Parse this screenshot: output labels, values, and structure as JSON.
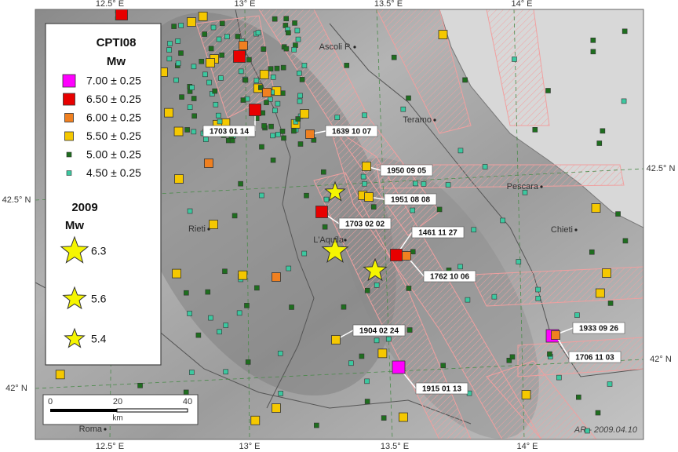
{
  "map": {
    "lon_labels": [
      "12.5° E",
      "13° E",
      "13.5° E",
      "14° E"
    ],
    "lat_labels": [
      "42.5° N",
      "42° N"
    ],
    "legend": {
      "title": "CPTI08",
      "magnitude_label": "Mw",
      "classes": [
        "7.00 ± 0.25",
        "6.50 ± 0.25",
        "6.00 ± 0.25",
        "5.50 ± 0.25",
        "5.00 ± 0.25",
        "4.50 ± 0.25"
      ],
      "year": "2009",
      "year_magnitude_label": "Mw",
      "stars": [
        "6.3",
        "5.6",
        "5.4"
      ]
    },
    "cities": [
      "Ascoli P.",
      "Teramo",
      "Pescara",
      "Chieti",
      "Rieti",
      "L'Aquila",
      "Roma"
    ],
    "events": [
      "1703 01 14",
      "1639 10 07",
      "1950 09 05",
      "1951 08 08",
      "1703 02 02",
      "1461 11 27",
      "1762 10 06",
      "1904 02 24",
      "1915 01 13",
      "1933 09 26",
      "1706 11 03"
    ],
    "scale": {
      "ticks": [
        "0",
        "20",
        "40"
      ],
      "unit": "km"
    },
    "credit": "AR - 2009.04.10"
  }
}
